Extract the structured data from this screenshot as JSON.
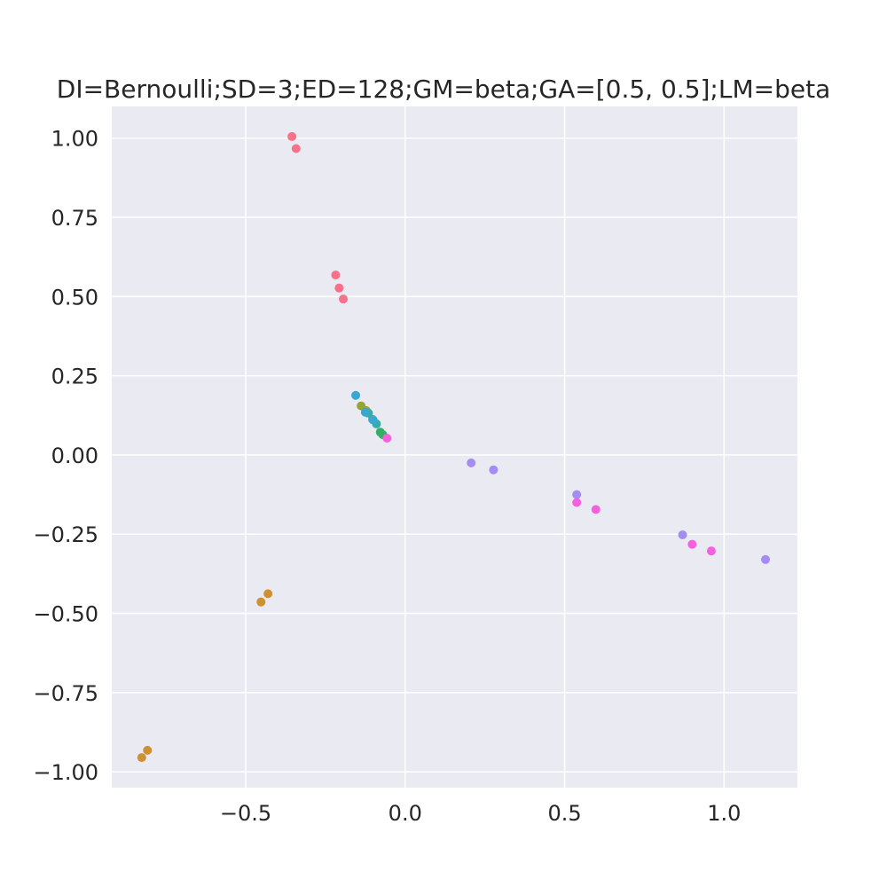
{
  "chart_data": {
    "type": "scatter",
    "title": "DI=Bernoulli;SD=3;ED=128;GM=beta;GA=[0.5, 0.5];LM=beta",
    "xlabel": "",
    "ylabel": "",
    "xlim": [
      -0.92,
      1.23
    ],
    "ylim": [
      -1.05,
      1.1
    ],
    "grid": true,
    "x_ticks": [
      -0.5,
      0.0,
      0.5,
      1.0
    ],
    "x_tick_labels": [
      "−0.5",
      "0.0",
      "0.5",
      "1.0"
    ],
    "y_ticks": [
      1.0,
      0.75,
      0.5,
      0.25,
      0.0,
      -0.25,
      -0.5,
      -0.75,
      -1.0
    ],
    "y_tick_labels": [
      "1.00",
      "0.75",
      "0.50",
      "0.25",
      "0.00",
      "−0.25",
      "−0.50",
      "−0.75",
      "−1.00"
    ],
    "series": [
      {
        "color": "#f77189",
        "points": [
          [
            -0.355,
            1.005
          ],
          [
            -0.342,
            0.967
          ],
          [
            -0.218,
            0.568
          ],
          [
            -0.207,
            0.527
          ],
          [
            -0.194,
            0.492
          ]
        ]
      },
      {
        "color": "#ce9032",
        "points": [
          [
            -0.43,
            -0.438
          ],
          [
            -0.452,
            -0.464
          ],
          [
            -0.808,
            -0.932
          ],
          [
            -0.826,
            -0.955
          ]
        ]
      },
      {
        "color": "#97a431",
        "points": [
          [
            -0.138,
            0.155
          ],
          [
            -0.122,
            0.14
          ]
        ]
      },
      {
        "color": "#32b166",
        "points": [
          [
            -0.078,
            0.072
          ],
          [
            -0.07,
            0.064
          ]
        ]
      },
      {
        "color": "#36ada4",
        "points": [
          [
            -0.115,
            0.132
          ],
          [
            -0.102,
            0.112
          ],
          [
            -0.09,
            0.098
          ]
        ]
      },
      {
        "color": "#39a7d0",
        "points": [
          [
            -0.155,
            0.188
          ],
          [
            -0.125,
            0.135
          ],
          [
            -0.1,
            0.11
          ]
        ]
      },
      {
        "color": "#a48cf4",
        "points": [
          [
            0.207,
            -0.025
          ],
          [
            0.277,
            -0.047
          ],
          [
            0.538,
            -0.125
          ],
          [
            0.87,
            -0.252
          ],
          [
            1.13,
            -0.33
          ]
        ]
      },
      {
        "color": "#f561dd",
        "points": [
          [
            -0.057,
            0.053
          ],
          [
            0.538,
            -0.15
          ],
          [
            0.598,
            -0.172
          ],
          [
            0.9,
            -0.282
          ],
          [
            0.96,
            -0.303
          ]
        ]
      }
    ]
  }
}
